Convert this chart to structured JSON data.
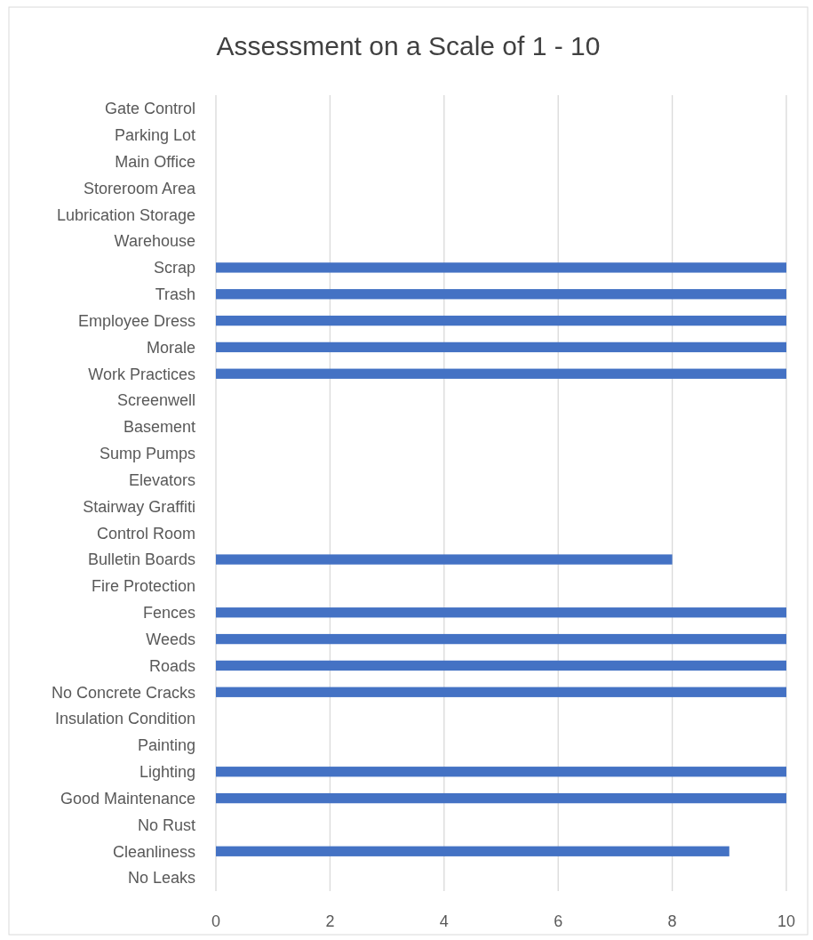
{
  "chart_data": {
    "type": "bar",
    "orientation": "horizontal",
    "title": "Assessment on a Scale of 1 - 10",
    "categories": [
      "Gate Control",
      "Parking Lot",
      "Main Office",
      "Storeroom Area",
      "Lubrication Storage",
      "Warehouse",
      "Scrap",
      "Trash",
      "Employee Dress",
      "Morale",
      "Work Practices",
      "Screenwell",
      "Basement",
      "Sump Pumps",
      "Elevators",
      "Stairway Graffiti",
      "Control Room",
      "Bulletin Boards",
      "Fire Protection",
      "Fences",
      "Weeds",
      "Roads",
      "No Concrete Cracks",
      "Insulation Condition",
      "Painting",
      "Lighting",
      "Good Maintenance",
      "No Rust",
      "Cleanliness",
      "No Leaks"
    ],
    "values": [
      null,
      null,
      null,
      null,
      null,
      null,
      10,
      10,
      10,
      10,
      10,
      null,
      null,
      null,
      null,
      null,
      null,
      8,
      null,
      10,
      10,
      10,
      10,
      null,
      null,
      10,
      10,
      null,
      9,
      null
    ],
    "color": "#4472c4",
    "xlim": [
      0,
      10
    ],
    "xticks": [
      0,
      2,
      4,
      6,
      8,
      10
    ],
    "grid": "x"
  }
}
